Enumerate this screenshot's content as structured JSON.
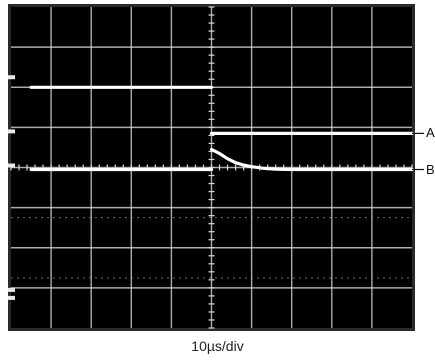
{
  "chart_data": {
    "type": "line",
    "title": "",
    "xlabel": "10µs/div",
    "ylabel": "",
    "x_divisions": 10,
    "y_divisions": 8,
    "xlim": [
      0,
      10
    ],
    "ylim": [
      0,
      8
    ],
    "grid": true,
    "background": "#000000",
    "trace_color": "#ffffff",
    "grid_color": "#d8d8d8",
    "series": [
      {
        "name": "",
        "segments": [
          {
            "x": [
              0.5,
              5.0
            ],
            "y": [
              6.0,
              6.0
            ]
          },
          {
            "x": [
              5.0,
              10.0
            ],
            "y": [
              4.85,
              4.85
            ]
          }
        ]
      },
      {
        "name": "",
        "segments": [
          {
            "x": [
              0.5,
              5.0
            ],
            "y": [
              3.95,
              3.95
            ]
          },
          {
            "x": [
              5.0,
              5.2,
              5.4,
              5.6,
              5.8,
              6.0,
              6.3,
              6.6,
              7.0,
              7.5,
              8.0,
              10.0
            ],
            "y": [
              4.45,
              4.35,
              4.22,
              4.12,
              4.06,
              4.02,
              3.98,
              3.96,
              3.95,
              3.95,
              3.95,
              3.95
            ]
          }
        ]
      }
    ],
    "trace_labels": [
      "A",
      "B"
    ],
    "label_y": [
      4.85,
      3.95
    ]
  }
}
